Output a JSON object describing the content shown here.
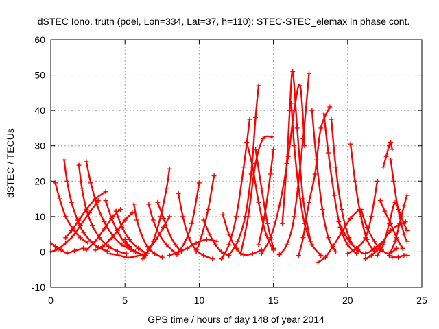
{
  "chart_data": {
    "type": "scatter",
    "title": "dSTEC Iono. truth (pdel, Lon=334, Lat=37, h=110): STEC-STEC_elemax in phase cont.",
    "xlabel": "GPS time / hours of day 148 of year 2014",
    "ylabel": "dSTEC  / TECUs",
    "xlim": [
      0,
      25
    ],
    "ylim": [
      -10,
      60
    ],
    "xticks": [
      0,
      5,
      10,
      15,
      20,
      25
    ],
    "yticks": [
      -10,
      0,
      10,
      20,
      30,
      40,
      50,
      60
    ],
    "grid": true,
    "legend": "none",
    "color": "#ff0000",
    "marker": "plus",
    "arcs": [
      {
        "x": [
          0.0,
          0.3,
          0.7,
          1.1,
          1.6,
          2.2
        ],
        "y": [
          2.5,
          1.5,
          0.5,
          -0.3,
          0.3,
          1.0
        ]
      },
      {
        "x": [
          0.0,
          0.5,
          1.0,
          1.5,
          2.0,
          2.6,
          3.2
        ],
        "y": [
          0.0,
          0.8,
          2.5,
          4.5,
          7.5,
          11.0,
          14.5
        ]
      },
      {
        "x": [
          0.3,
          0.6,
          1.0,
          1.5,
          2.0,
          2.5
        ],
        "y": [
          19.5,
          15.0,
          10.0,
          6.5,
          4.0,
          2.5
        ]
      },
      {
        "x": [
          0.9,
          1.1,
          1.4,
          1.8,
          2.2,
          2.7,
          3.2,
          3.8
        ],
        "y": [
          26.0,
          20.0,
          14.0,
          9.0,
          5.5,
          3.0,
          1.2,
          0.2
        ]
      },
      {
        "x": [
          1.0,
          1.4,
          1.9,
          2.4,
          3.0,
          3.7
        ],
        "y": [
          4.0,
          6.0,
          9.0,
          12.0,
          15.0,
          17.0
        ]
      },
      {
        "x": [
          1.9,
          2.1,
          2.4,
          2.8,
          3.3,
          3.9,
          4.5,
          5.1
        ],
        "y": [
          24.5,
          18.0,
          12.0,
          7.5,
          4.0,
          1.5,
          0.2,
          -0.5
        ]
      },
      {
        "x": [
          2.4,
          2.7,
          3.1,
          3.6,
          4.2,
          4.8,
          5.4
        ],
        "y": [
          25.5,
          19.5,
          13.5,
          8.5,
          4.5,
          2.0,
          0.6
        ]
      },
      {
        "x": [
          2.4,
          3.0,
          3.6,
          4.2,
          4.7
        ],
        "y": [
          0.5,
          3.0,
          6.5,
          10.0,
          12.0
        ]
      },
      {
        "x": [
          3.7,
          4.1,
          4.6,
          5.1,
          5.6,
          6.2
        ],
        "y": [
          14.5,
          9.5,
          5.0,
          2.0,
          0.2,
          -0.8
        ]
      },
      {
        "x": [
          3.0,
          3.5,
          4.0,
          4.5,
          5.0,
          5.5
        ],
        "y": [
          0.5,
          1.5,
          3.5,
          6.0,
          9.0,
          11.0
        ]
      },
      {
        "x": [
          4.4,
          4.8,
          5.3,
          5.9,
          6.5
        ],
        "y": [
          11.5,
          7.0,
          3.5,
          1.0,
          -0.5
        ]
      },
      {
        "x": [
          5.0,
          5.3,
          5.7,
          6.2
        ],
        "y": [
          3.5,
          1.5,
          0.0,
          -1.0
        ]
      },
      {
        "x": [
          4.0,
          4.6,
          5.2,
          5.8,
          6.3
        ],
        "y": [
          -0.5,
          -1.0,
          -1.6,
          -1.2,
          -0.8
        ]
      },
      {
        "x": [
          5.6,
          5.8,
          6.1,
          6.5,
          7.0,
          7.5
        ],
        "y": [
          13.5,
          9.0,
          5.0,
          1.5,
          -0.5,
          -1.5
        ]
      },
      {
        "x": [
          6.2,
          6.6,
          7.1,
          7.6,
          8.0
        ],
        "y": [
          -2.0,
          0.5,
          3.5,
          7.0,
          10.0
        ]
      },
      {
        "x": [
          6.6,
          6.9,
          7.3,
          7.8,
          8.3
        ],
        "y": [
          13.5,
          9.0,
          5.0,
          2.0,
          0.0
        ]
      },
      {
        "x": [
          6.4,
          6.9,
          7.4,
          7.8,
          8.0
        ],
        "y": [
          -1.0,
          3.0,
          10.0,
          18.0,
          23.5
        ]
      },
      {
        "x": [
          7.2,
          7.6,
          8.0,
          8.4,
          8.8
        ],
        "y": [
          14.0,
          9.5,
          5.0,
          2.0,
          0.0
        ]
      },
      {
        "x": [
          8.0,
          8.6,
          9.2,
          9.8,
          10.5,
          11.2
        ],
        "y": [
          -1.0,
          0.0,
          1.0,
          2.5,
          3.5,
          3.0
        ]
      },
      {
        "x": [
          8.6,
          8.9,
          9.3,
          9.8,
          10.3,
          10.9
        ],
        "y": [
          16.5,
          10.0,
          4.0,
          0.5,
          -1.0,
          -2.0
        ]
      },
      {
        "x": [
          8.5,
          9.0,
          9.5,
          10.0
        ],
        "y": [
          -0.8,
          2.5,
          8.0,
          19.5
        ]
      },
      {
        "x": [
          9.8,
          10.2,
          10.6,
          11.0
        ],
        "y": [
          0.0,
          5.0,
          12.0,
          21.5
        ]
      },
      {
        "x": [
          10.3,
          10.7,
          11.1,
          11.5,
          12.0
        ],
        "y": [
          9.0,
          5.0,
          2.0,
          0.0,
          -1.0
        ]
      },
      {
        "x": [
          11.6,
          12.0,
          12.5,
          13.0,
          13.6,
          14.2
        ],
        "y": [
          10.5,
          5.0,
          1.0,
          -0.8,
          -0.5,
          0.5
        ]
      },
      {
        "x": [
          11.5,
          12.0,
          12.5,
          13.0,
          13.4
        ],
        "y": [
          -2.0,
          2.0,
          10.0,
          24.0,
          37.5
        ]
      },
      {
        "x": [
          12.8,
          13.3,
          13.8,
          14.3,
          14.9
        ],
        "y": [
          -0.5,
          10.0,
          25.0,
          32.0,
          32.5
        ]
      },
      {
        "x": [
          12.0,
          12.6,
          13.1,
          13.5,
          13.8,
          14.0
        ],
        "y": [
          -1.0,
          3.0,
          10.0,
          22.0,
          38.0,
          47.0
        ]
      },
      {
        "x": [
          13.2,
          13.6,
          14.0,
          14.5,
          15.0
        ],
        "y": [
          31.0,
          24.0,
          14.0,
          5.0,
          0.5
        ]
      },
      {
        "x": [
          13.8,
          14.2,
          14.6,
          15.0
        ],
        "y": [
          29.0,
          18.0,
          8.0,
          1.0
        ]
      },
      {
        "x": [
          14.0,
          14.4,
          14.8,
          15.0
        ],
        "y": [
          2.0,
          10.0,
          22.0,
          29.0
        ]
      },
      {
        "x": [
          14.2,
          14.8,
          15.4,
          16.0,
          16.4,
          16.8,
          17.1
        ],
        "y": [
          -0.5,
          4.0,
          13.0,
          27.0,
          40.0,
          47.0,
          30.0
        ]
      },
      {
        "x": [
          15.6,
          15.9,
          16.1,
          16.3,
          16.6,
          17.0,
          17.5
        ],
        "y": [
          8.0,
          25.0,
          40.0,
          51.0,
          35.0,
          15.0,
          3.0
        ]
      },
      {
        "x": [
          16.2,
          16.4,
          16.7,
          17.1,
          17.6,
          18.2
        ],
        "y": [
          42.0,
          30.0,
          18.0,
          8.0,
          2.0,
          -1.0
        ]
      },
      {
        "x": [
          15.4,
          15.9,
          16.4,
          17.0,
          17.4
        ],
        "y": [
          -0.8,
          2.0,
          10.0,
          32.0,
          50.5
        ]
      },
      {
        "x": [
          16.7,
          17.0,
          17.4,
          17.8,
          18.2,
          18.8
        ],
        "y": [
          -1.0,
          4.0,
          14.0,
          22.0,
          35.0,
          41.0
        ]
      },
      {
        "x": [
          17.6,
          17.9,
          18.3,
          18.7,
          19.2
        ],
        "y": [
          40.0,
          26.0,
          12.0,
          4.0,
          0.0
        ]
      },
      {
        "x": [
          18.4,
          18.7,
          19.1,
          19.5,
          20.0,
          20.6
        ],
        "y": [
          39.0,
          28.0,
          16.0,
          7.0,
          2.0,
          -0.5
        ]
      },
      {
        "x": [
          18.9,
          19.2,
          19.6,
          20.1,
          20.7
        ],
        "y": [
          37.5,
          24.0,
          12.0,
          4.0,
          0.0
        ]
      },
      {
        "x": [
          18.0,
          18.5,
          19.0,
          19.6,
          20.2,
          20.8
        ],
        "y": [
          -3.0,
          -1.5,
          1.5,
          5.5,
          9.5,
          12.0
        ]
      },
      {
        "x": [
          19.4,
          19.8,
          20.2,
          20.7,
          21.2,
          21.8,
          22.4
        ],
        "y": [
          8.5,
          5.0,
          2.5,
          0.5,
          -0.5,
          1.0,
          3.0
        ]
      },
      {
        "x": [
          20.2,
          20.5,
          20.9,
          21.3,
          21.8
        ],
        "y": [
          30.5,
          20.0,
          10.0,
          3.5,
          0.0
        ]
      },
      {
        "x": [
          20.0,
          20.6,
          21.2,
          21.6,
          22.0
        ],
        "y": [
          -0.5,
          1.0,
          4.0,
          10.0,
          20.0
        ]
      },
      {
        "x": [
          20.9,
          21.3,
          21.8,
          22.3,
          22.8,
          23.3
        ],
        "y": [
          12.0,
          7.0,
          3.0,
          0.5,
          -0.5,
          1.0
        ]
      },
      {
        "x": [
          21.2,
          21.6,
          22.0,
          22.4,
          22.9,
          23.4,
          23.9
        ],
        "y": [
          -2.0,
          -1.0,
          0.5,
          3.0,
          6.0,
          7.5,
          8.5
        ]
      },
      {
        "x": [
          22.4,
          22.6,
          22.8,
          22.9,
          23.0
        ],
        "y": [
          24.0,
          27.0,
          30.0,
          31.0,
          29.0
        ]
      },
      {
        "x": [
          22.9,
          23.1,
          23.4,
          23.8,
          24.0
        ],
        "y": [
          26.0,
          20.0,
          12.0,
          5.0,
          3.0
        ]
      },
      {
        "x": [
          22.0,
          22.4,
          22.8,
          23.2,
          23.6,
          24.0
        ],
        "y": [
          -1.0,
          2.0,
          8.0,
          14.0,
          10.0,
          6.0
        ]
      },
      {
        "x": [
          22.2,
          22.5,
          22.9,
          23.3,
          23.7
        ],
        "y": [
          14.5,
          11.5,
          8.0,
          4.0,
          1.0
        ]
      },
      {
        "x": [
          22.8,
          23.2,
          23.5,
          23.8,
          24.0
        ],
        "y": [
          -1.0,
          3.0,
          8.0,
          13.0,
          16.0
        ]
      },
      {
        "x": [
          23.0,
          23.4,
          23.8,
          24.0
        ],
        "y": [
          -1.5,
          -1.5,
          -1.0,
          -1.0
        ]
      }
    ]
  }
}
